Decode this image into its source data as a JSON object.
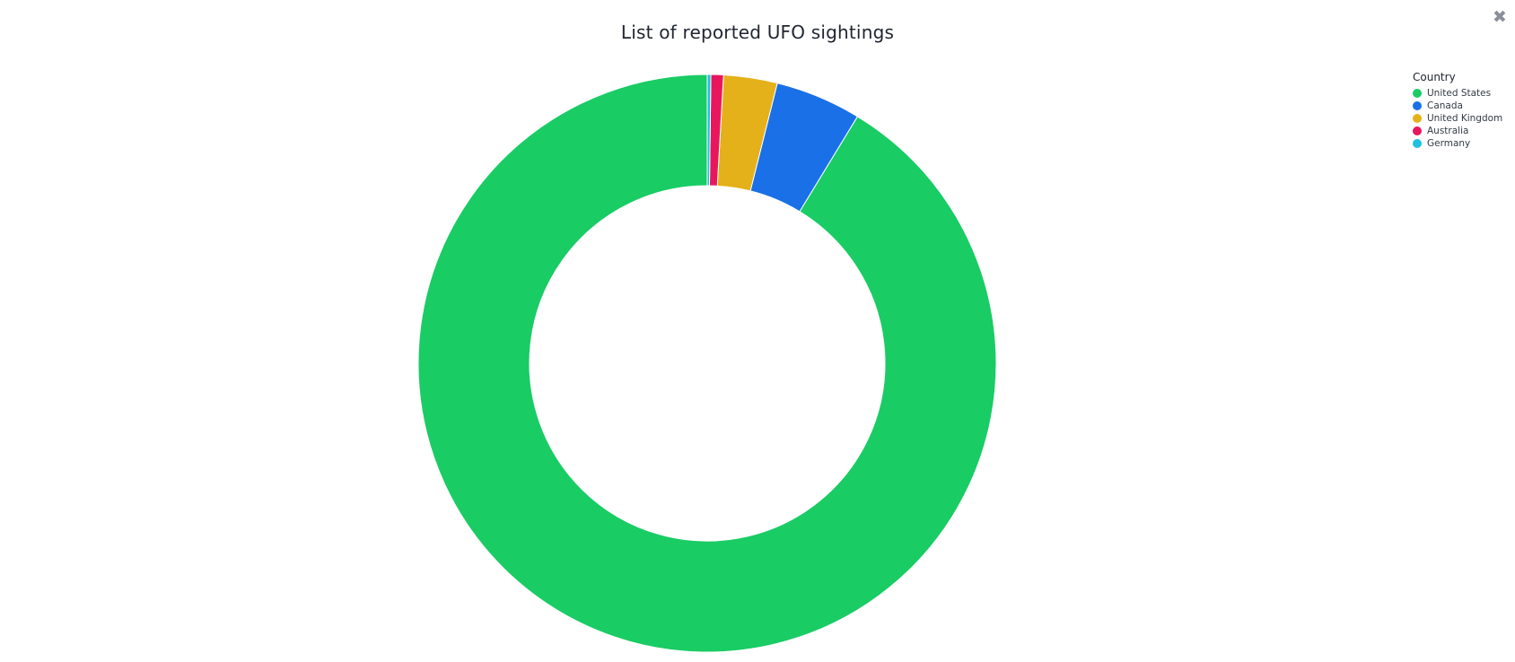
{
  "chart_data": {
    "type": "pie",
    "title": "List of reported UFO sightings",
    "legend_title": "Country",
    "legend_position": "top-right",
    "donut": true,
    "categories": [
      "United States",
      "Canada",
      "United Kingdom",
      "Australia",
      "Germany"
    ],
    "values": [
      91.3,
      4.8,
      3.0,
      0.7,
      0.2
    ],
    "colors": [
      "#19cc64",
      "#1a70e6",
      "#e5b11a",
      "#e8175d",
      "#1fc1e0"
    ]
  },
  "controls": {
    "close_glyph": "✖"
  }
}
